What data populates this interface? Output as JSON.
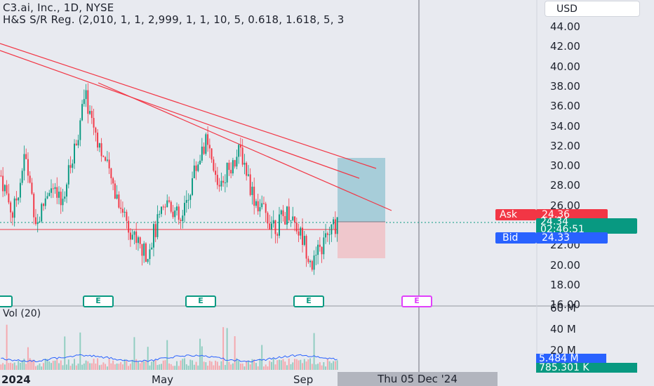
{
  "header": {
    "symbol_line": "C3.ai, Inc., 1D, NYSE",
    "indicator_line": "H&S S/R Reg. (2,010, 1, 1, 2,999, 1, 1, 10, 5, 0.618, 1.618, 5, 3"
  },
  "currency": "USD",
  "price_axis": [
    "44.00",
    "42.00",
    "40.00",
    "38.00",
    "36.00",
    "34.00",
    "32.00",
    "30.00",
    "28.00",
    "26.00",
    "22.00",
    "20.00",
    "18.00",
    "16.00"
  ],
  "quote": {
    "ask_label": "Ask",
    "ask_value": "24.36",
    "last_price": "24.34",
    "countdown": "02:46:51",
    "bid_label": "Bid",
    "bid_value": "24.33"
  },
  "volume": {
    "label": "Vol (20)",
    "axis": [
      "60 M",
      "40 M",
      "20 M"
    ],
    "value": "5.484 M",
    "ma_value": "785.301 K"
  },
  "time_axis": [
    "2024",
    "May",
    "Sep"
  ],
  "crosshair_date": "Thu 05 Dec '24",
  "earnings_badge": "E",
  "colors": {
    "up": "#089981",
    "down": "#f23645",
    "trendline": "#f23645",
    "target_zone": "#a7cdd9",
    "stop_zone": "#efc7cc",
    "volume_ma": "#2962ff"
  },
  "chart_data": {
    "type": "candlestick",
    "price_series": [
      {
        "x": "2024-01",
        "y": 29
      },
      {
        "x": "2024-01",
        "y": 25
      },
      {
        "x": "2024-01",
        "y": 31
      },
      {
        "x": "2024-01",
        "y": 24
      },
      {
        "x": "2024-02",
        "y": 28
      },
      {
        "x": "2024-02",
        "y": 26
      },
      {
        "x": "2024-02",
        "y": 31
      },
      {
        "x": "2024-03",
        "y": 37
      },
      {
        "x": "2024-03",
        "y": 33
      },
      {
        "x": "2024-03",
        "y": 29
      },
      {
        "x": "2024-04",
        "y": 26
      },
      {
        "x": "2024-04",
        "y": 23
      },
      {
        "x": "2024-05",
        "y": 21
      },
      {
        "x": "2024-05",
        "y": 24
      },
      {
        "x": "2024-05",
        "y": 26.5
      },
      {
        "x": "2024-06",
        "y": 24
      },
      {
        "x": "2024-06",
        "y": 29
      },
      {
        "x": "2024-06",
        "y": 32.5
      },
      {
        "x": "2024-07",
        "y": 28
      },
      {
        "x": "2024-07",
        "y": 30
      },
      {
        "x": "2024-07",
        "y": 31.5
      },
      {
        "x": "2024-08",
        "y": 27
      },
      {
        "x": "2024-08",
        "y": 25
      },
      {
        "x": "2024-08",
        "y": 24
      },
      {
        "x": "2024-09",
        "y": 25.5
      },
      {
        "x": "2024-09",
        "y": 23
      },
      {
        "x": "2024-09",
        "y": 20
      },
      {
        "x": "2024-09",
        "y": 22.5
      },
      {
        "x": "2024-10",
        "y": 24.34
      }
    ],
    "trendlines": [
      {
        "from": {
          "x": "2023-12",
          "y": 42.5
        },
        "to": {
          "x": "2024-12",
          "y": 29.8
        }
      },
      {
        "from": {
          "x": "2023-12",
          "y": 41.5
        },
        "to": {
          "x": "2024-12",
          "y": 28.8
        }
      },
      {
        "from": {
          "x": "2024-03",
          "y": 37.8
        },
        "to": {
          "x": "2024-12",
          "y": 25.5
        }
      }
    ],
    "support_level": 24.0,
    "long_position": {
      "entry": 24.36,
      "target": 30.8,
      "stop": 21.0
    },
    "ylim": [
      16,
      45
    ]
  }
}
